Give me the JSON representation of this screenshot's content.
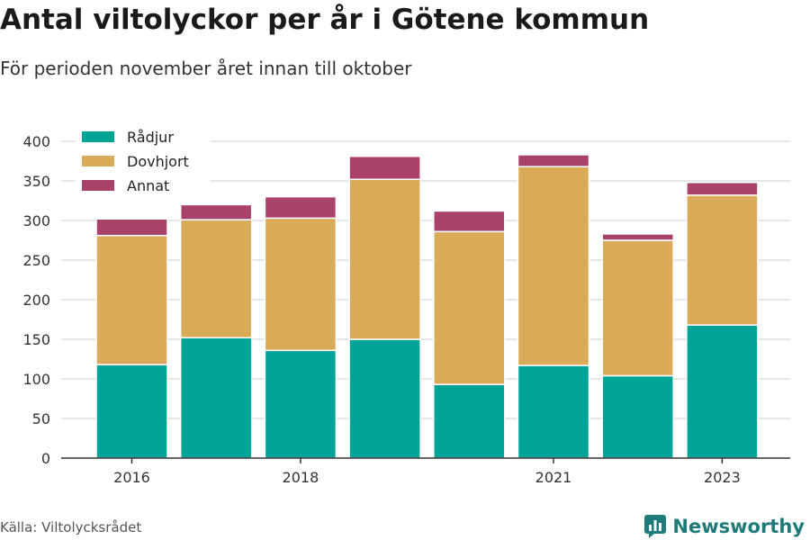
{
  "header": {
    "title": "Antal viltolyckor per år i Götene kommun",
    "subtitle": "För perioden november året innan till oktober"
  },
  "footer": {
    "source": "Källa: Viltolycksrådet",
    "brand": "Newsworthy",
    "brand_icon": "bar-chart-logo-icon"
  },
  "colors": {
    "radjur": "#00a396",
    "dovhjort": "#d9ab59",
    "annat": "#a8426b",
    "grid": "#dddddd",
    "axis": "#333333",
    "brand": "#1f7a7a"
  },
  "chart_data": {
    "type": "bar",
    "stacked": true,
    "years": [
      2016,
      2017,
      2018,
      2019,
      2020,
      2021,
      2022,
      2023
    ],
    "x_tick_labels": [
      "2016",
      "2018",
      "2021",
      "2023"
    ],
    "x_tick_years": [
      2016,
      2018,
      2021,
      2023
    ],
    "series": [
      {
        "name": "Rådjur",
        "color": "#00a396",
        "values": [
          118,
          152,
          136,
          150,
          93,
          117,
          104,
          168
        ]
      },
      {
        "name": "Dovhjort",
        "color": "#d9ab59",
        "values": [
          163,
          149,
          167,
          202,
          193,
          251,
          171,
          164
        ]
      },
      {
        "name": "Annat",
        "color": "#a8426b",
        "values": [
          21,
          19,
          27,
          29,
          26,
          15,
          8,
          16
        ]
      }
    ],
    "ylim": [
      0,
      400
    ],
    "y_ticks": [
      0,
      50,
      100,
      150,
      200,
      250,
      300,
      350,
      400
    ],
    "grid": true,
    "legend_position": "top-left"
  }
}
